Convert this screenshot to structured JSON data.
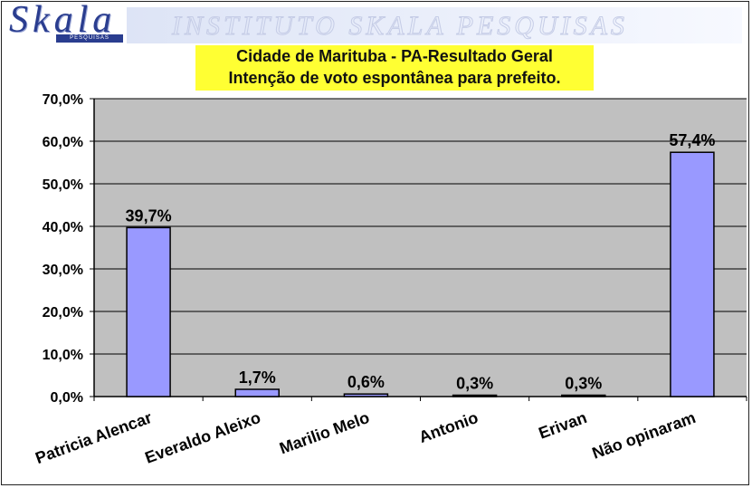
{
  "logo": {
    "name": "Skala",
    "tagline": "PESQUISAS"
  },
  "header": {
    "watermark": "INSTITUTO SKALA PESQUISAS"
  },
  "chart_data": {
    "type": "bar",
    "title": "Cidade de Marituba - PA-Resultado Geral",
    "subtitle": "Intenção de voto espontânea para prefeito.",
    "categories": [
      "Patricia Alencar",
      "Everaldo Aleixo",
      "Marilio Melo",
      "Antonio",
      "Erivan",
      "Não opinaram"
    ],
    "values": [
      39.7,
      1.7,
      0.6,
      0.3,
      0.3,
      57.4
    ],
    "value_labels": [
      "39,7%",
      "1,7%",
      "0,6%",
      "0,3%",
      "0,3%",
      "57,4%"
    ],
    "ylim": [
      0,
      70
    ],
    "yticks": [
      0,
      10,
      20,
      30,
      40,
      50,
      60,
      70
    ],
    "ytick_labels": [
      "0,0%",
      "10,0%",
      "20,0%",
      "30,0%",
      "40,0%",
      "50,0%",
      "60,0%",
      "70,0%"
    ],
    "xlabel": "",
    "ylabel": "",
    "grid": true,
    "colors": {
      "bar": "#9999ff",
      "bar_edge": "#000000",
      "plot_bg": "#c0c0c0",
      "title_bg": "#ffff33"
    }
  }
}
